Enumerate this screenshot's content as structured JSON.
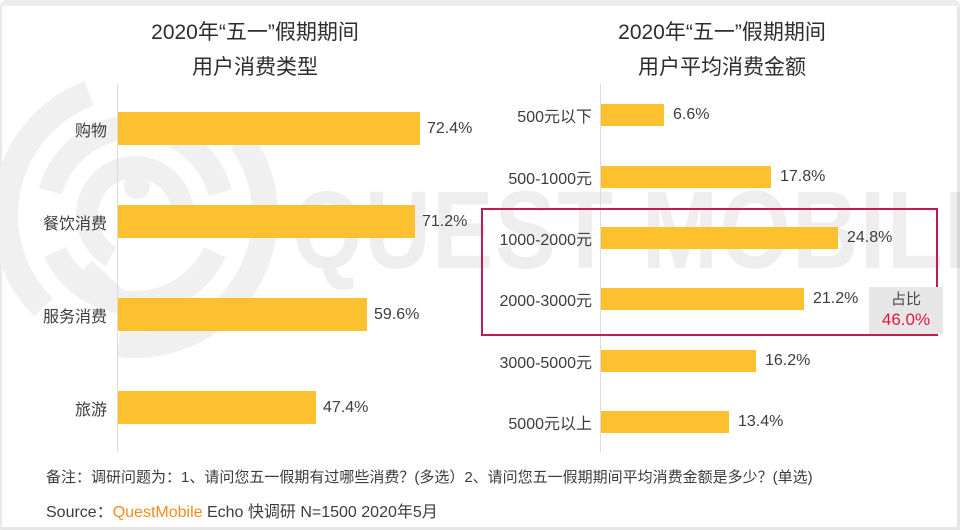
{
  "watermark": {
    "text": "QUEST MOBILE",
    "logo": "questmobile-logo"
  },
  "colors": {
    "bar_yellow": "#FDC130",
    "highlight_border": "#C51D4B",
    "highlight_value_red": "#E3173C",
    "badge_bg": "#E7E7E7",
    "brand_orange": "#F28D1E",
    "axis_gray": "#DCDCDC"
  },
  "footer": {
    "note": "备注：调研问题为：1、请问您五一假期有过哪些消费？(多选）2、请问您五一假期期间平均消费金额是多少？(单选)",
    "source_prefix": "Source：",
    "source_brand": "QuestMobile",
    "source_rest": " Echo 快调研 N=1500 2020年5月"
  },
  "chart_data": [
    {
      "type": "bar",
      "orientation": "horizontal",
      "title": "2020年“五一”假期期间用户消费类型",
      "title_lines": [
        "2020年“五一”假期期间",
        "用户消费类型"
      ],
      "categories": [
        "购物",
        "餐饮消费",
        "服务消费",
        "旅游"
      ],
      "values": [
        72.4,
        71.2,
        59.6,
        47.4
      ],
      "value_labels": [
        "72.4%",
        "71.2%",
        "59.6%",
        "47.4%"
      ],
      "unit": "%",
      "bar_color": "#FDC130",
      "grid": false,
      "value_label_position": "end"
    },
    {
      "type": "bar",
      "orientation": "horizontal",
      "title": "2020年“五一”假期期间用户平均消费金额",
      "title_lines": [
        "2020年“五一”假期期间",
        "用户平均消费金额"
      ],
      "categories": [
        "500元以下",
        "500-1000元",
        "1000-2000元",
        "2000-3000元",
        "3000-5000元",
        "5000元以上"
      ],
      "values": [
        6.6,
        17.8,
        24.8,
        21.2,
        16.2,
        13.4
      ],
      "value_labels": [
        "6.6%",
        "17.8%",
        "24.8%",
        "21.2%",
        "16.2%",
        "13.4%"
      ],
      "unit": "%",
      "bar_color": "#FDC130",
      "grid": false,
      "value_label_position": "end",
      "highlight": {
        "categories": [
          "1000-2000元",
          "2000-3000元"
        ],
        "label": "占比",
        "value": 46.0,
        "value_label": "46.0%"
      }
    }
  ]
}
